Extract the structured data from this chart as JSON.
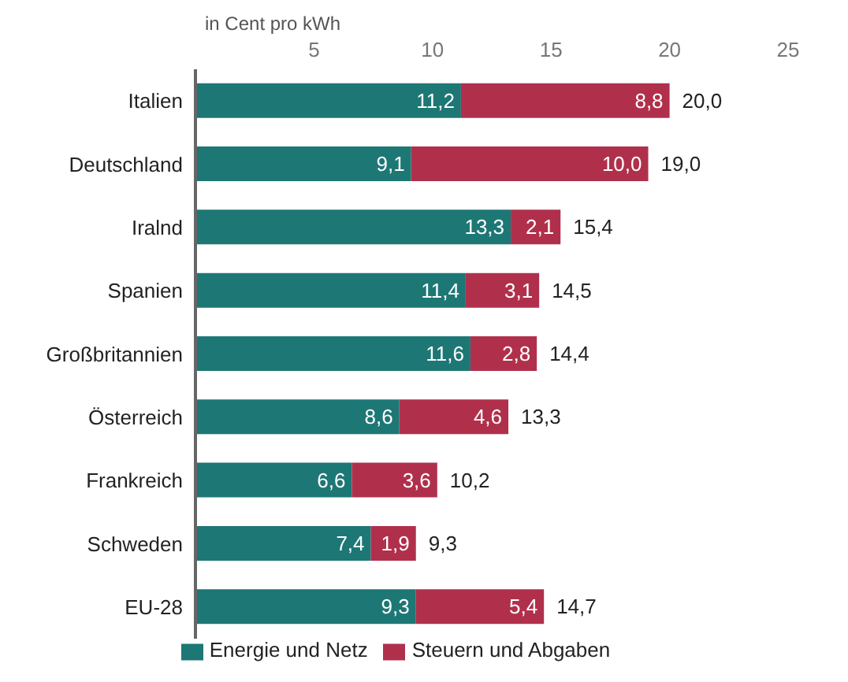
{
  "chart_data": {
    "type": "bar",
    "orientation": "horizontal",
    "stacked": true,
    "xlabel": "in Cent pro kWh",
    "categories": [
      "Italien",
      "Deutschland",
      "Iralnd",
      "Spanien",
      "Großbritannien",
      "Österreich",
      "Frankreich",
      "Schweden",
      "EU-28"
    ],
    "series": [
      {
        "name": "Energie und Netz",
        "color": "#1d7775",
        "values": [
          11.2,
          9.1,
          13.3,
          11.4,
          11.6,
          8.6,
          6.6,
          7.4,
          9.3
        ],
        "value_labels": [
          "11,2",
          "9,1",
          "13,3",
          "11,4",
          "11,6",
          "8,6",
          "6,6",
          "7,4",
          "9,3"
        ]
      },
      {
        "name": "Steuern und Abgaben",
        "color": "#b0304c",
        "values": [
          8.8,
          10.0,
          2.1,
          3.1,
          2.8,
          4.6,
          3.6,
          1.9,
          5.4
        ],
        "value_labels": [
          "8,8",
          "10,0",
          "2,1",
          "3,1",
          "2,8",
          "4,6",
          "3,6",
          "1,9",
          "5,4"
        ]
      }
    ],
    "totals": [
      "20,0",
      "19,0",
      "15,4",
      "14,5",
      "14,4",
      "13,3",
      "10,2",
      "9,3",
      "14,7"
    ],
    "xlim": [
      0,
      25
    ],
    "xticks": [
      5,
      10,
      15,
      20,
      25
    ],
    "legend": "bottom"
  }
}
